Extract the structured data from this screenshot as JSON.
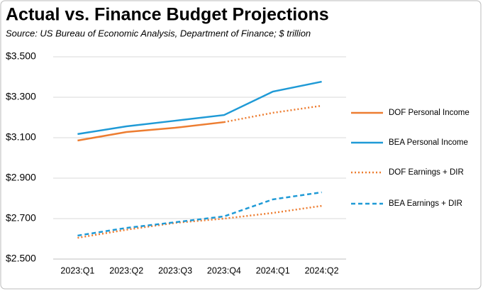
{
  "chart_data": {
    "type": "line",
    "title": "Actual vs. Finance Budget Projections",
    "subtitle": "Source: US Bureau of Economic Analysis, Department of Finance; $ trillion",
    "categories": [
      "2023:Q1",
      "2023:Q2",
      "2023:Q3",
      "2023:Q4",
      "2024:Q1",
      "2024:Q2"
    ],
    "series": [
      {
        "name": "DOF Personal Income",
        "color": "#ed7d31",
        "dash": "solid",
        "dotted_after": 3,
        "values": [
          3.086,
          3.128,
          3.149,
          3.177,
          3.223,
          3.258
        ]
      },
      {
        "name": "BEA Personal Income",
        "color": "#1f9ad6",
        "dash": "solid",
        "values": [
          3.118,
          3.156,
          3.184,
          3.212,
          3.328,
          3.377
        ]
      },
      {
        "name": "DOF Earnings + DIR",
        "color": "#ed7d31",
        "dash": "dotted",
        "values": [
          2.605,
          2.645,
          2.679,
          2.7,
          2.728,
          2.763
        ]
      },
      {
        "name": "BEA Earnings + DIR",
        "color": "#1f9ad6",
        "dash": "dashed",
        "values": [
          2.616,
          2.654,
          2.682,
          2.711,
          2.795,
          2.83
        ]
      }
    ],
    "ylim": [
      2.5,
      3.5
    ],
    "yticks": [
      {
        "value": 2.5,
        "label": "$2.500"
      },
      {
        "value": 2.7,
        "label": "$2.700"
      },
      {
        "value": 2.9,
        "label": "$2.900"
      },
      {
        "value": 3.1,
        "label": "$3.100"
      },
      {
        "value": 3.3,
        "label": "$3.300"
      },
      {
        "value": 3.5,
        "label": "$3.500"
      }
    ],
    "grid": true,
    "legend": "right"
  }
}
